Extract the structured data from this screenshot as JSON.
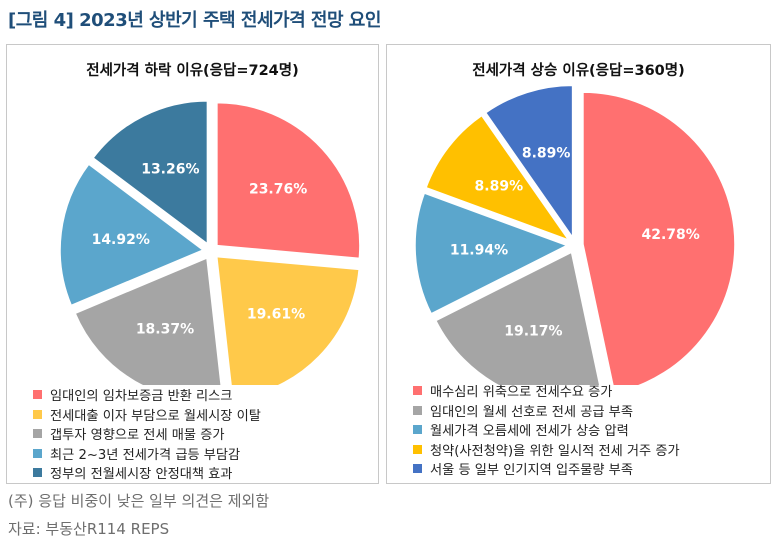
{
  "figure_title": "[그림 4] 2023년 상반기 주택 전세가격 전망 요인",
  "note": "(주) 응답 비중이 낮은 일부 의견은 제외함",
  "source": "자료: 부동산R114 REPS",
  "chart_data": [
    {
      "type": "pie",
      "title": "전세가격 하락 이유(응답=724명)",
      "labels": [
        "임대인의 임차보증금 반환 리스크",
        "전세대출 이자 부담으로 월세시장 이탈",
        "갭투자 영향으로 전세 매물 증가",
        "최근 2~3년 전세가격 급등 부담감",
        "정부의 전월세시장 안정대책 효과"
      ],
      "values": [
        23.76,
        19.61,
        18.37,
        14.92,
        13.26
      ],
      "value_labels": [
        "23.76%",
        "19.61%",
        "18.37%",
        "14.92%",
        "13.26%"
      ],
      "colors": [
        "#ff7070",
        "#ffc94a",
        "#a5a5a5",
        "#5ba6cc",
        "#3c7a9e"
      ]
    },
    {
      "type": "pie",
      "title": "전세가격 상승 이유(응답=360명)",
      "labels": [
        "매수심리 위축으로 전세수요 증가",
        "임대인의 월세 선호로 전세 공급 부족",
        "월세가격 오름세에 전세가 상승 압력",
        "청약(사전청약)을 위한 일시적 전세 거주 증가",
        "서울 등 일부 인기지역 입주물량 부족"
      ],
      "values": [
        42.78,
        19.17,
        11.94,
        8.89,
        8.89
      ],
      "value_labels": [
        "42.78%",
        "19.17%",
        "11.94%",
        "8.89%",
        "8.89%"
      ],
      "colors": [
        "#ff7070",
        "#a5a5a5",
        "#5ba6cc",
        "#ffc000",
        "#4472c4"
      ]
    }
  ]
}
